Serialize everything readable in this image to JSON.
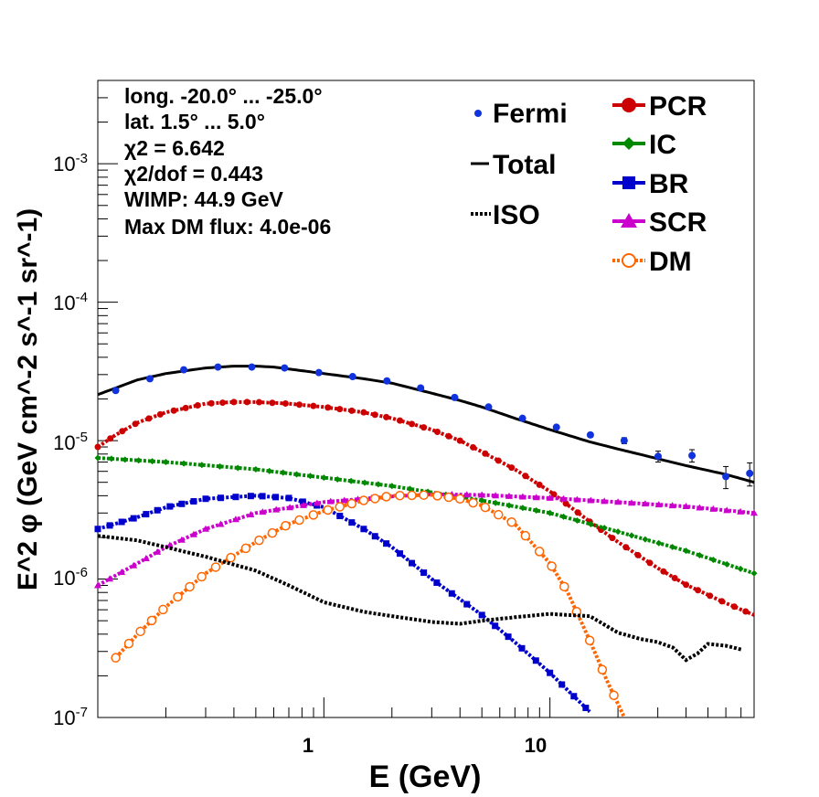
{
  "chart_data": {
    "type": "line",
    "xscale": "log",
    "yscale": "log",
    "xlim": [
      0.1,
      80
    ],
    "ylim": [
      1e-07,
      0.004
    ],
    "xlabel": "E (GeV)",
    "ylabel": "E^2 φ (GeV cm^-2 s^-1 sr^-1)",
    "x_tick_labels": [
      {
        "value": 1,
        "label": "1"
      },
      {
        "value": 10,
        "label": "10"
      }
    ],
    "y_tick_labels": [
      {
        "value": 1e-07,
        "base": "10",
        "exp": "-7"
      },
      {
        "value": 1e-06,
        "base": "10",
        "exp": "-6"
      },
      {
        "value": 1e-05,
        "base": "10",
        "exp": "-5"
      },
      {
        "value": 0.0001,
        "base": "10",
        "exp": "-4"
      },
      {
        "value": 0.001,
        "base": "10",
        "exp": "-3"
      }
    ],
    "info_lines": [
      "long. -20.0° ... -25.0°",
      "lat. 1.5° ... 5.0°",
      "χ2 = 6.642",
      "χ2/dof = 0.443",
      "WIMP: 44.9 GeV",
      "Max DM flux: 4.0e-06"
    ],
    "legend_left": [
      "Fermi",
      "Total",
      "ISO"
    ],
    "legend_right": [
      "PCR",
      "IC",
      "BR",
      "SCR",
      "DM"
    ],
    "colors": {
      "Fermi": "#1133dd",
      "Total": "#000000",
      "ISO": "#000000",
      "PCR": "#cc0000",
      "IC": "#008800",
      "BR": "#0000cc",
      "SCR": "#cc00cc",
      "DM": "#ff6600"
    },
    "fermi_points": {
      "x": [
        0.12,
        0.17,
        0.24,
        0.34,
        0.48,
        0.67,
        0.95,
        1.34,
        1.9,
        2.68,
        3.79,
        5.35,
        7.56,
        10.68,
        15.1,
        21.3,
        30.1,
        42.5,
        60.0,
        76.5
      ],
      "y": [
        2.3e-05,
        2.8e-05,
        3.25e-05,
        3.4e-05,
        3.4e-05,
        3.35e-05,
        3.1e-05,
        2.9e-05,
        2.7e-05,
        2.4e-05,
        2.05e-05,
        1.75e-05,
        1.45e-05,
        1.25e-05,
        1.1e-05,
        1e-05,
        7.7e-06,
        7.8e-06,
        5.5e-06,
        5.8e-06
      ],
      "yerr": [
        2e-07,
        2e-07,
        2e-07,
        2e-07,
        2e-07,
        2e-07,
        2e-07,
        2e-07,
        2e-07,
        2e-07,
        2e-07,
        2e-07,
        2e-07,
        3e-07,
        4e-07,
        5e-07,
        7e-07,
        8e-07,
        1e-06,
        1.1e-06
      ]
    },
    "series": [
      {
        "name": "Total",
        "style": "solid",
        "x": [
          0.1,
          0.12,
          0.15,
          0.2,
          0.3,
          0.4,
          0.5,
          0.6,
          0.8,
          1,
          1.5,
          2,
          3,
          4,
          5,
          7,
          10,
          15,
          20,
          30,
          40,
          60,
          80
        ],
        "y": [
          2.15e-05,
          2.4e-05,
          2.75e-05,
          3.05e-05,
          3.35e-05,
          3.45e-05,
          3.45e-05,
          3.4e-05,
          3.2e-05,
          3.05e-05,
          2.8e-05,
          2.6e-05,
          2.2e-05,
          1.95e-05,
          1.75e-05,
          1.45e-05,
          1.2e-05,
          9.8e-06,
          8.7e-06,
          7.4e-06,
          6.6e-06,
          5.7e-06,
          5e-06
        ]
      },
      {
        "name": "PCR",
        "style": "circles",
        "x": [
          0.1,
          0.12,
          0.15,
          0.2,
          0.3,
          0.4,
          0.5,
          0.7,
          1,
          1.5,
          2,
          3,
          4,
          5,
          7,
          10,
          15,
          20,
          30,
          40,
          60,
          80
        ],
        "y": [
          9e-06,
          1.1e-05,
          1.35e-05,
          1.6e-05,
          1.85e-05,
          1.9e-05,
          1.9e-05,
          1.85e-05,
          1.75e-05,
          1.6e-05,
          1.45e-05,
          1.2e-05,
          1e-05,
          8.3e-06,
          6.2e-06,
          4.3e-06,
          2.6e-06,
          1.85e-06,
          1.2e-06,
          9.1e-07,
          6.7e-07,
          5.5e-07
        ]
      },
      {
        "name": "IC",
        "style": "diamonds",
        "x": [
          0.1,
          0.2,
          0.5,
          1,
          2,
          5,
          10,
          20,
          40,
          80
        ],
        "y": [
          7.5e-06,
          7e-06,
          6.2e-06,
          5.4e-06,
          4.7e-06,
          3.7e-06,
          3e-06,
          2.2e-06,
          1.6e-06,
          1.1e-06
        ]
      },
      {
        "name": "BR",
        "style": "squares",
        "x": [
          0.1,
          0.15,
          0.2,
          0.3,
          0.5,
          0.7,
          1,
          1.5,
          2,
          3,
          5,
          7,
          10,
          15
        ],
        "y": [
          2.3e-06,
          2.8e-06,
          3.3e-06,
          3.8e-06,
          4e-06,
          3.85e-06,
          3.3e-06,
          2.3e-06,
          1.7e-06,
          1e-06,
          5.5e-07,
          3.5e-07,
          2.1e-07,
          1.1e-07
        ]
      },
      {
        "name": "SCR",
        "style": "triangles",
        "x": [
          0.1,
          0.15,
          0.2,
          0.3,
          0.5,
          1,
          2,
          3,
          5,
          10,
          20,
          40,
          80
        ],
        "y": [
          9e-07,
          1.3e-06,
          1.7e-06,
          2.3e-06,
          3e-06,
          3.6e-06,
          3.95e-06,
          4.1e-06,
          4.05e-06,
          3.85e-06,
          3.6e-06,
          3.35e-06,
          3e-06
        ]
      },
      {
        "name": "DM",
        "style": "open-circles",
        "x": [
          0.12,
          0.15,
          0.2,
          0.3,
          0.5,
          0.7,
          1,
          1.5,
          2,
          3,
          4,
          5,
          7,
          10,
          12,
          15,
          18,
          20,
          22
        ],
        "y": [
          2.7e-07,
          4e-07,
          6.3e-07,
          1.1e-06,
          1.85e-06,
          2.5e-06,
          3.1e-06,
          3.7e-06,
          4e-06,
          4.05e-06,
          3.8e-06,
          3.4e-06,
          2.5e-06,
          1.3e-06,
          8e-07,
          3.6e-07,
          1.8e-07,
          1.25e-07,
          9e-08
        ]
      },
      {
        "name": "ISO",
        "style": "dotted",
        "x": [
          0.1,
          0.15,
          0.2,
          0.3,
          0.5,
          0.7,
          1,
          1.5,
          2,
          3,
          4,
          5,
          7,
          10,
          12,
          15,
          20,
          25,
          30,
          35,
          40,
          45,
          50,
          60,
          70
        ],
        "y": [
          2.05e-06,
          1.9e-06,
          1.7e-06,
          1.45e-06,
          1.15e-06,
          9e-07,
          6.8e-07,
          5.8e-07,
          5.4e-07,
          4.9e-07,
          4.75e-07,
          5e-07,
          5.3e-07,
          5.6e-07,
          5.5e-07,
          5.4e-07,
          4.1e-07,
          3.7e-07,
          3.5e-07,
          3.2e-07,
          2.6e-07,
          2.9e-07,
          3.4e-07,
          3.3e-07,
          3.1e-07
        ]
      }
    ]
  }
}
